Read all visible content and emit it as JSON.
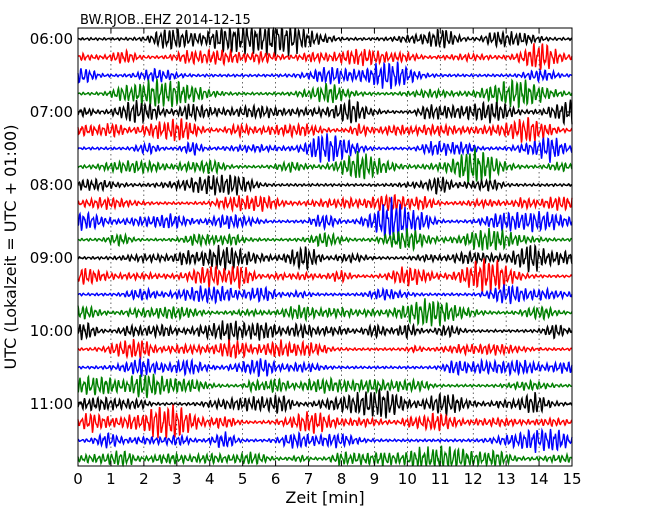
{
  "chart_data": {
    "type": "line",
    "title": "BW.RJOB..EHZ 2014-12-15",
    "xlabel": "Zeit  [min]",
    "ylabel": "UTC (Lokalzeit = UTC + 01:00)",
    "xlim": [
      0,
      15
    ],
    "x_ticks": [
      0,
      1,
      2,
      3,
      4,
      5,
      6,
      7,
      8,
      9,
      10,
      11,
      12,
      13,
      14,
      15
    ],
    "x_tick_labels": [
      "0",
      "1",
      "2",
      "3",
      "4",
      "5",
      "6",
      "7",
      "8",
      "9",
      "10",
      "11",
      "12",
      "13",
      "14",
      "15"
    ],
    "y_tick_labels": [
      "06:00",
      "07:00",
      "08:00",
      "09:00",
      "10:00",
      "11:00"
    ],
    "trace_colors": [
      "#000000",
      "#ff0000",
      "#0000ff",
      "#008000"
    ],
    "traces_per_hour": 4,
    "trace_count": 24,
    "vertical_gridlines": true,
    "gridline_style": "dotted"
  }
}
